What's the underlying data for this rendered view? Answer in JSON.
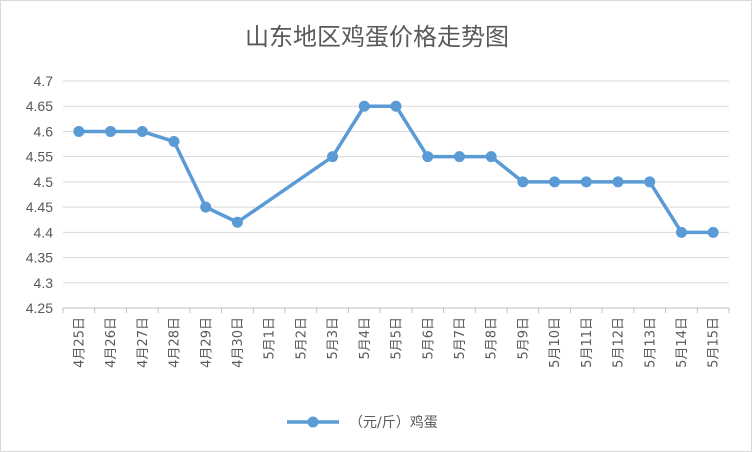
{
  "chart_data": {
    "type": "line",
    "title": "山东地区鸡蛋价格走势图",
    "categories": [
      "4月25日",
      "4月26日",
      "4月27日",
      "4月28日",
      "4月29日",
      "4月30日",
      "5月1日",
      "5月2日",
      "5月3日",
      "5月4日",
      "5月5日",
      "5月6日",
      "5月7日",
      "5月8日",
      "5月9日",
      "5月10日",
      "5月11日",
      "5月12日",
      "5月13日",
      "5月14日",
      "5月15日"
    ],
    "series": [
      {
        "name": "（元/斤）鸡蛋",
        "values": [
          4.6,
          4.6,
          4.6,
          4.58,
          4.45,
          4.42,
          null,
          null,
          4.55,
          4.65,
          4.65,
          4.55,
          4.55,
          4.55,
          4.5,
          4.5,
          4.5,
          4.5,
          4.5,
          4.4,
          4.4
        ],
        "color": "#5b9bd5"
      }
    ],
    "y_ticks": [
      "4.25",
      "4.3",
      "4.35",
      "4.4",
      "4.45",
      "4.5",
      "4.55",
      "4.6",
      "4.65",
      "4.7"
    ],
    "ylim": [
      4.25,
      4.7
    ],
    "grid": true,
    "legend_position": "bottom",
    "gap_handling": "connect"
  }
}
